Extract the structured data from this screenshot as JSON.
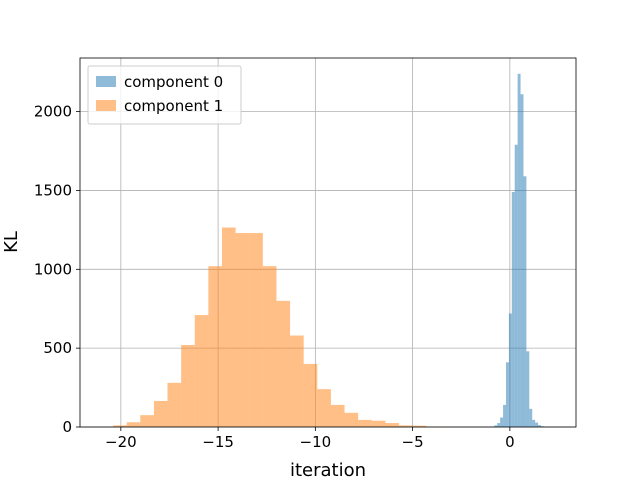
{
  "chart_data": {
    "type": "bar",
    "xlabel": "iteration",
    "ylabel": "KL",
    "xlim": [
      -22.1,
      3.4
    ],
    "ylim": [
      0,
      2340
    ],
    "grid": true,
    "legend_position": "top-left",
    "x_ticks": [
      -20,
      -15,
      -10,
      -5,
      0
    ],
    "x_tick_labels": [
      "−20",
      "−15",
      "−10",
      "−5",
      "0"
    ],
    "y_ticks": [
      0,
      500,
      1000,
      1500,
      2000
    ],
    "y_tick_labels": [
      "0",
      "500",
      "1000",
      "1500",
      "2000"
    ],
    "series": [
      {
        "name": "component 0",
        "color": "#1f77b4",
        "opacity": 0.5,
        "bin_edges": [
          -0.95,
          -0.8,
          -0.65,
          -0.5,
          -0.35,
          -0.2,
          -0.05,
          0.1,
          0.25,
          0.4,
          0.55,
          0.7,
          0.85,
          1.0,
          1.15,
          1.3,
          1.45,
          1.6,
          1.75,
          1.9,
          2.05
        ],
        "counts": [
          3,
          10,
          25,
          60,
          140,
          410,
          720,
          1490,
          1790,
          2240,
          2110,
          1590,
          480,
          115,
          45,
          28,
          12,
          5,
          2,
          1
        ]
      },
      {
        "name": "component 1",
        "color": "#ff7f0e",
        "opacity": 0.5,
        "bin_edges": [
          -20.4,
          -19.7,
          -19.0,
          -18.3,
          -17.6,
          -16.9,
          -16.2,
          -15.5,
          -14.8,
          -14.1,
          -13.4,
          -12.7,
          -12.0,
          -11.3,
          -10.6,
          -9.9,
          -9.2,
          -8.5,
          -7.8,
          -7.1,
          -6.4,
          -5.7,
          -5.0,
          -4.3,
          -3.6,
          -2.9,
          -2.2
        ],
        "counts": [
          10,
          30,
          75,
          165,
          280,
          520,
          710,
          1020,
          1265,
          1230,
          1230,
          1020,
          800,
          580,
          400,
          240,
          140,
          90,
          45,
          40,
          25,
          10,
          8,
          3,
          2,
          1
        ]
      }
    ]
  }
}
